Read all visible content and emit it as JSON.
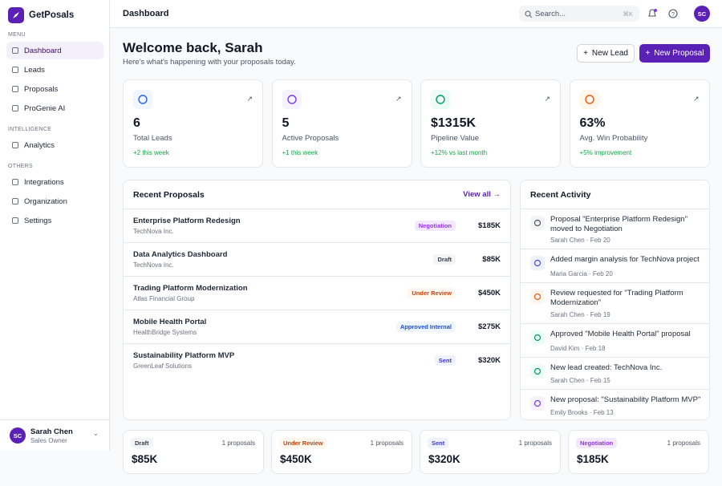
{
  "app": {
    "name": "GetPosals"
  },
  "sidebar": {
    "sections": [
      {
        "label": "MENU",
        "items": [
          "Dashboard",
          "Leads",
          "Proposals",
          "ProGenie AI"
        ]
      },
      {
        "label": "INTELLIGENCE",
        "items": [
          "Analytics"
        ]
      },
      {
        "label": "OTHERS",
        "items": [
          "Integrations",
          "Organization",
          "Settings"
        ]
      }
    ],
    "user": {
      "initials": "SC",
      "name": "Sarah Chen",
      "role": "Sales Owner"
    }
  },
  "header": {
    "title": "Dashboard",
    "search": "Search...",
    "shortcut": "⌘K",
    "avatar": "SC"
  },
  "welcome": {
    "title": "Welcome back, Sarah",
    "subtitle": "Here's what's happening with your proposals today.",
    "buttons": [
      "New Lead",
      "New Proposal"
    ]
  },
  "stats": [
    {
      "value": "6",
      "label": "Total Leads",
      "change": "+2 this week"
    },
    {
      "value": "5",
      "label": "Active Proposals",
      "change": "+1 this week"
    },
    {
      "value": "$1315K",
      "label": "Pipeline Value",
      "change": "+12% vs last month"
    },
    {
      "value": "63%",
      "label": "Avg. Win Probability",
      "change": "+5% improvement"
    }
  ],
  "recent_proposals": {
    "title": "Recent Proposals",
    "link": "View all →",
    "rows": [
      {
        "name": "Enterprise Platform Redesign",
        "client": "TechNova Inc.",
        "status": "Negotiation",
        "amount": "$185K"
      },
      {
        "name": "Data Analytics Dashboard",
        "client": "TechNova Inc.",
        "status": "Draft",
        "amount": "$85K"
      },
      {
        "name": "Trading Platform Modernization",
        "client": "Atlas Financial Group",
        "status": "Under Review",
        "amount": "$450K"
      },
      {
        "name": "Mobile Health Portal",
        "client": "HealthBridge Systems",
        "status": "Approved Internal",
        "amount": "$275K"
      },
      {
        "name": "Sustainability Platform MVP",
        "client": "GreenLeaf Solutions",
        "status": "Sent",
        "amount": "$320K"
      }
    ]
  },
  "recent_activity": {
    "title": "Recent Activity",
    "items": [
      {
        "text": "Proposal \"Enterprise Platform Redesign\" moved to Negotiation",
        "meta": "Sarah Chen · Feb 20"
      },
      {
        "text": "Added margin analysis for TechNova project",
        "meta": "Maria Garcia · Feb 20"
      },
      {
        "text": "Review requested for \"Trading Platform Modernization\"",
        "meta": "Sarah Chen · Feb 19"
      },
      {
        "text": "Approved \"Mobile Health Portal\" proposal",
        "meta": "David Kim · Feb 18"
      },
      {
        "text": "New lead created: TechNova Inc.",
        "meta": "Sarah Chen · Feb 15"
      },
      {
        "text": "New proposal: \"Sustainability Platform MVP\"",
        "meta": "Emily Brooks · Feb 13"
      }
    ]
  },
  "pipeline": [
    {
      "status": "Draft",
      "count": "1 proposals",
      "amount": "$85K"
    },
    {
      "status": "Under Review",
      "count": "1 proposals",
      "amount": "$450K"
    },
    {
      "status": "Sent",
      "count": "1 proposals",
      "amount": "$320K"
    },
    {
      "status": "Negotiation",
      "count": "1 proposals",
      "amount": "$185K"
    }
  ]
}
